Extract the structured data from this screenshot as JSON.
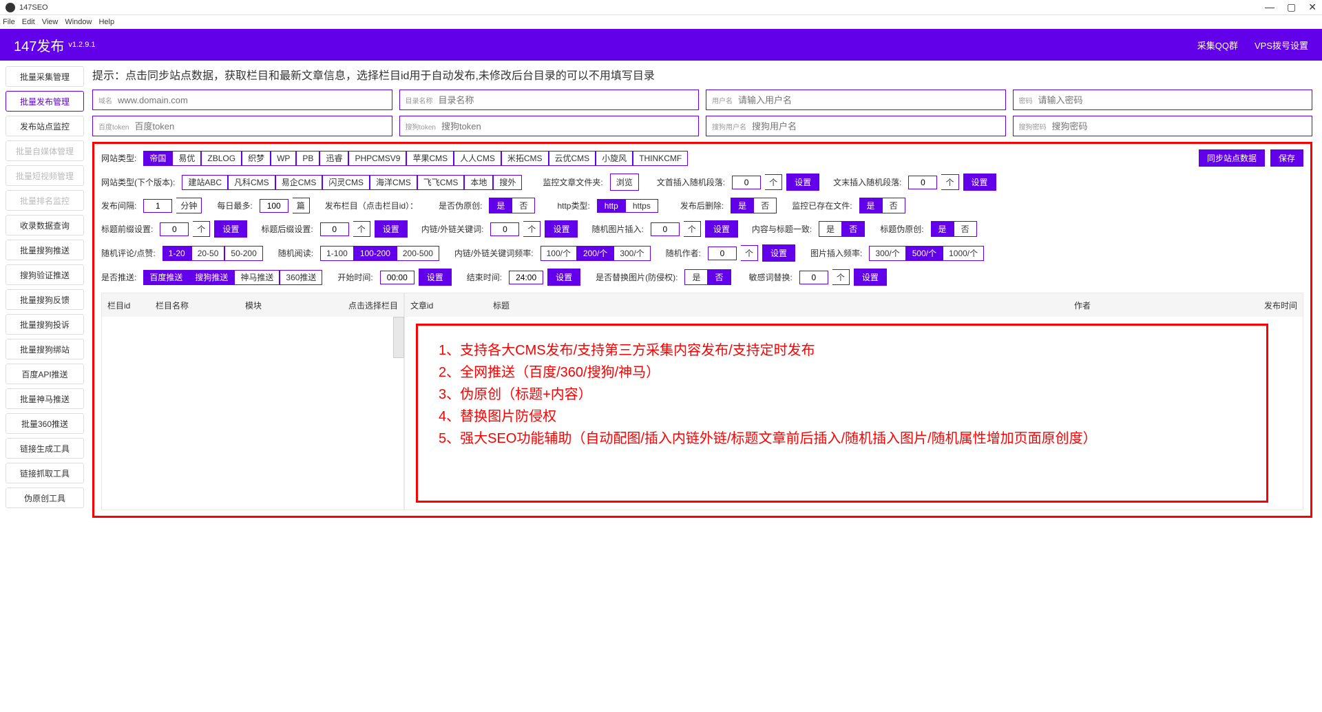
{
  "window": {
    "title": "147SEO",
    "menu": [
      "File",
      "Edit",
      "View",
      "Window",
      "Help"
    ]
  },
  "header": {
    "brand": "147发布",
    "version": "v1.2.9.1",
    "links": [
      "采集QQ群",
      "VPS拨号设置"
    ]
  },
  "sidebar": [
    {
      "label": "批量采集管理",
      "state": ""
    },
    {
      "label": "批量发布管理",
      "state": "active"
    },
    {
      "label": "发布站点监控",
      "state": ""
    },
    {
      "label": "批量自媒体管理",
      "state": "disabled"
    },
    {
      "label": "批量短视频管理",
      "state": "disabled"
    },
    {
      "label": "批量排名监控",
      "state": "disabled"
    },
    {
      "label": "收录数据查询",
      "state": ""
    },
    {
      "label": "批量搜狗推送",
      "state": ""
    },
    {
      "label": "搜狗验证推送",
      "state": ""
    },
    {
      "label": "批量搜狗反馈",
      "state": ""
    },
    {
      "label": "批量搜狗投诉",
      "state": ""
    },
    {
      "label": "批量搜狗绑站",
      "state": ""
    },
    {
      "label": "百度API推送",
      "state": ""
    },
    {
      "label": "批量神马推送",
      "state": ""
    },
    {
      "label": "批量360推送",
      "state": ""
    },
    {
      "label": "链接生成工具",
      "state": ""
    },
    {
      "label": "链接抓取工具",
      "state": ""
    },
    {
      "label": "伪原创工具",
      "state": ""
    }
  ],
  "tip": "提示：点击同步站点数据，获取栏目和最新文章信息，选择栏目id用于自动发布,未修改后台目录的可以不用填写目录",
  "inputs1": [
    {
      "lbl": "域名",
      "ph": "www.domain.com"
    },
    {
      "lbl": "目录名称",
      "ph": "目录名称"
    },
    {
      "lbl": "用户名",
      "ph": "请输入用户名"
    },
    {
      "lbl": "密码",
      "ph": "请输入密码"
    }
  ],
  "inputs2": [
    {
      "lbl": "百度token",
      "ph": "百度token"
    },
    {
      "lbl": "搜狗token",
      "ph": "搜狗token"
    },
    {
      "lbl": "搜狗用户名",
      "ph": "搜狗用户名"
    },
    {
      "lbl": "搜狗密码",
      "ph": "搜狗密码"
    }
  ],
  "site_type": {
    "lbl": "网站类型:",
    "opts": [
      "帝国",
      "易优",
      "ZBLOG",
      "织梦",
      "WP",
      "PB",
      "迅睿",
      "PHPCMSV9",
      "苹果CMS",
      "人人CMS",
      "米拓CMS",
      "云优CMS",
      "小旋风",
      "THINKCMF"
    ],
    "active": 0,
    "right_btns": [
      "同步站点数据",
      "保存"
    ]
  },
  "site_type_next": {
    "lbl": "网站类型(下个版本):",
    "opts": [
      "建站ABC",
      "凡科CMS",
      "易企CMS",
      "闪灵CMS",
      "海洋CMS",
      "飞飞CMS",
      "本地",
      "搜外"
    ]
  },
  "monitor": {
    "lbl": "监控文章文件夹:",
    "btn": "浏览"
  },
  "insert_front": {
    "lbl": "文首插入随机段落:",
    "val": "0",
    "unit": "个",
    "btn": "设置"
  },
  "insert_end": {
    "lbl": "文末插入随机段落:",
    "val": "0",
    "unit": "个",
    "btn": "设置"
  },
  "interval": {
    "lbl": "发布间隔:",
    "val": "1",
    "unit": "分钟"
  },
  "daily": {
    "lbl": "每日最多:",
    "val": "100",
    "unit": "篇"
  },
  "col_lbl": "发布栏目（点击栏目id）：",
  "pseudo": {
    "lbl": "是否伪原创:",
    "opts": [
      "是",
      "否"
    ],
    "active": 0
  },
  "http": {
    "lbl": "http类型:",
    "opts": [
      "http",
      "https"
    ],
    "active": 0
  },
  "del_after": {
    "lbl": "发布后删除:",
    "opts": [
      "是",
      "否"
    ],
    "active": 0
  },
  "mon_exist": {
    "lbl": "监控已存在文件:",
    "opts": [
      "是",
      "否"
    ],
    "active": 0
  },
  "title_pre": {
    "lbl": "标题前缀设置:",
    "val": "0",
    "unit": "个",
    "btn": "设置"
  },
  "title_suf": {
    "lbl": "标题后缀设置:",
    "val": "0",
    "unit": "个",
    "btn": "设置"
  },
  "link_kw": {
    "lbl": "内链/外链关键词:",
    "val": "0",
    "unit": "个",
    "btn": "设置"
  },
  "rand_img": {
    "lbl": "随机图片插入:",
    "val": "0",
    "unit": "个",
    "btn": "设置"
  },
  "content_title": {
    "lbl": "内容与标题一致:",
    "opts": [
      "是",
      "否"
    ],
    "active": 1
  },
  "title_pseudo": {
    "lbl": "标题伪原创:",
    "opts": [
      "是",
      "否"
    ],
    "active": 0
  },
  "rand_comment": {
    "lbl": "随机评论/点赞:",
    "opts": [
      "1-20",
      "20-50",
      "50-200"
    ],
    "active": 0
  },
  "rand_read": {
    "lbl": "随机阅读:",
    "opts": [
      "1-100",
      "100-200",
      "200-500"
    ],
    "active": 1
  },
  "link_freq": {
    "lbl": "内链/外链关键词频率:",
    "opts": [
      "100/个",
      "200/个",
      "300/个"
    ],
    "active": 1
  },
  "rand_author": {
    "lbl": "随机作者:",
    "val": "0",
    "unit": "个",
    "btn": "设置"
  },
  "img_freq": {
    "lbl": "图片插入频率:",
    "opts": [
      "300/个",
      "500/个",
      "1000/个"
    ],
    "active": 1
  },
  "push": {
    "lbl": "是否推送:",
    "opts": [
      "百度推送",
      "搜狗推送",
      "神马推送",
      "360推送"
    ],
    "active": [
      0,
      1
    ]
  },
  "start_time": {
    "lbl": "开始时间:",
    "val": "00:00",
    "btn": "设置"
  },
  "end_time": {
    "lbl": "结束时间:",
    "val": "24:00",
    "btn": "设置"
  },
  "replace_img": {
    "lbl": "是否替换图片(防侵权):",
    "opts": [
      "是",
      "否"
    ],
    "active": 1
  },
  "sensitive": {
    "lbl": "敏感词替换:",
    "val": "0",
    "unit": "个",
    "btn": "设置"
  },
  "table1_cols": [
    "栏目id",
    "栏目名称",
    "模块",
    "点击选择栏目"
  ],
  "table2_cols": [
    "文章id",
    "标题",
    "作者",
    "发布时间"
  ],
  "features": [
    "1、支持各大CMS发布/支持第三方采集内容发布/支持定时发布",
    "2、全网推送（百度/360/搜狗/神马）",
    "3、伪原创（标题+内容）",
    "4、替换图片防侵权",
    "5、强大SEO功能辅助（自动配图/插入内链外链/标题文章前后插入/随机插入图片/随机属性增加页面原创度）"
  ]
}
